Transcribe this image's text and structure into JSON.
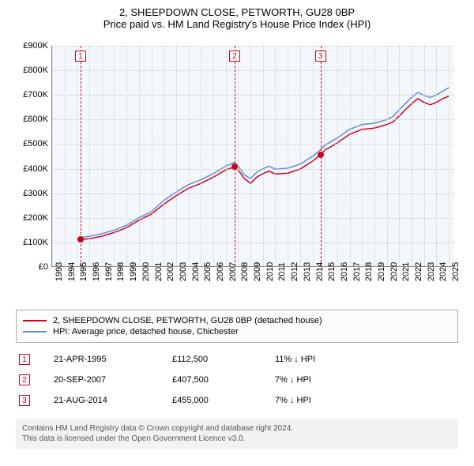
{
  "titles": {
    "line1": "2, SHEEPDOWN CLOSE, PETWORTH, GU28 0BP",
    "line2": "Price paid vs. HM Land Registry's House Price Index (HPI)"
  },
  "chart": {
    "type": "line",
    "background_color": "#f4f7fb",
    "grid_color": "#cccccc",
    "axis_color": "#888888",
    "x_years": [
      1993,
      1994,
      1995,
      1996,
      1997,
      1998,
      1999,
      2000,
      2001,
      2002,
      2003,
      2004,
      2005,
      2006,
      2007,
      2008,
      2009,
      2010,
      2011,
      2012,
      2013,
      2014,
      2015,
      2016,
      2017,
      2018,
      2019,
      2020,
      2021,
      2022,
      2023,
      2024,
      2025
    ],
    "xlim": [
      1993,
      2025.5
    ],
    "y_ticks": [
      0,
      100,
      200,
      300,
      400,
      500,
      600,
      700,
      800,
      900
    ],
    "y_tick_labels": [
      "£0",
      "£100K",
      "£200K",
      "£300K",
      "£400K",
      "£500K",
      "£600K",
      "£700K",
      "£800K",
      "£900K"
    ],
    "ylim": [
      0,
      900
    ],
    "label_fontsize": 11,
    "series": [
      {
        "name": "2, SHEEPDOWN CLOSE, PETWORTH, GU28 0BP (detached house)",
        "color": "#d00020",
        "line_width": 1.5,
        "data": [
          [
            1995.3,
            112
          ],
          [
            1996,
            115
          ],
          [
            1997,
            125
          ],
          [
            1998,
            140
          ],
          [
            1999,
            160
          ],
          [
            2000,
            190
          ],
          [
            2001,
            215
          ],
          [
            2002,
            255
          ],
          [
            2003,
            290
          ],
          [
            2004,
            320
          ],
          [
            2005,
            340
          ],
          [
            2006,
            365
          ],
          [
            2007,
            395
          ],
          [
            2007.7,
            407
          ],
          [
            2008,
            395
          ],
          [
            2008.5,
            360
          ],
          [
            2009,
            340
          ],
          [
            2009.5,
            365
          ],
          [
            2010,
            380
          ],
          [
            2010.5,
            390
          ],
          [
            2011,
            378
          ],
          [
            2012,
            382
          ],
          [
            2013,
            398
          ],
          [
            2014,
            430
          ],
          [
            2014.6,
            455
          ],
          [
            2015,
            475
          ],
          [
            2016,
            505
          ],
          [
            2017,
            540
          ],
          [
            2018,
            560
          ],
          [
            2019,
            565
          ],
          [
            2020,
            580
          ],
          [
            2020.5,
            590
          ],
          [
            2021,
            615
          ],
          [
            2021.5,
            640
          ],
          [
            2022,
            665
          ],
          [
            2022.5,
            685
          ],
          [
            2023,
            670
          ],
          [
            2023.5,
            660
          ],
          [
            2024,
            670
          ],
          [
            2024.5,
            685
          ],
          [
            2025,
            695
          ]
        ]
      },
      {
        "name": "HPI: Average price, detached house, Chichester",
        "color": "#5b8fd6",
        "line_width": 1.5,
        "data": [
          [
            1995.3,
            120
          ],
          [
            1996,
            125
          ],
          [
            1997,
            135
          ],
          [
            1998,
            150
          ],
          [
            1999,
            170
          ],
          [
            2000,
            200
          ],
          [
            2001,
            225
          ],
          [
            2002,
            270
          ],
          [
            2003,
            305
          ],
          [
            2004,
            335
          ],
          [
            2005,
            355
          ],
          [
            2006,
            380
          ],
          [
            2007,
            410
          ],
          [
            2007.7,
            425
          ],
          [
            2008,
            410
          ],
          [
            2008.5,
            375
          ],
          [
            2009,
            360
          ],
          [
            2009.5,
            385
          ],
          [
            2010,
            400
          ],
          [
            2010.5,
            410
          ],
          [
            2011,
            398
          ],
          [
            2012,
            402
          ],
          [
            2013,
            418
          ],
          [
            2014,
            450
          ],
          [
            2014.6,
            475
          ],
          [
            2015,
            495
          ],
          [
            2016,
            525
          ],
          [
            2017,
            560
          ],
          [
            2018,
            580
          ],
          [
            2019,
            585
          ],
          [
            2020,
            600
          ],
          [
            2020.5,
            612
          ],
          [
            2021,
            640
          ],
          [
            2021.5,
            665
          ],
          [
            2022,
            690
          ],
          [
            2022.5,
            710
          ],
          [
            2023,
            698
          ],
          [
            2023.5,
            690
          ],
          [
            2024,
            700
          ],
          [
            2024.5,
            715
          ],
          [
            2025,
            730
          ]
        ]
      }
    ],
    "markers": [
      {
        "n": "1",
        "year": 1995.3,
        "price_k": 112,
        "line_color": "#d00020",
        "box_border": "#d00020"
      },
      {
        "n": "2",
        "year": 2007.72,
        "price_k": 407,
        "line_color": "#d00020",
        "box_border": "#d00020"
      },
      {
        "n": "3",
        "year": 2014.64,
        "price_k": 455,
        "line_color": "#d00020",
        "box_border": "#d00020"
      }
    ]
  },
  "legend": {
    "items": [
      {
        "color": "#d00020",
        "label": "2, SHEEPDOWN CLOSE, PETWORTH, GU28 0BP (detached house)"
      },
      {
        "color": "#5b8fd6",
        "label": "HPI: Average price, detached house, Chichester"
      }
    ]
  },
  "events": [
    {
      "n": "1",
      "date": "21-APR-1995",
      "price": "£112,500",
      "diff": "11% ↓ HPI"
    },
    {
      "n": "2",
      "date": "20-SEP-2007",
      "price": "£407,500",
      "diff": "7% ↓ HPI"
    },
    {
      "n": "3",
      "date": "21-AUG-2014",
      "price": "£455,000",
      "diff": "7% ↓ HPI"
    }
  ],
  "footer": {
    "line1": "Contains HM Land Registry data © Crown copyright and database right 2024.",
    "line2": "This data is licensed under the Open Government Licence v3.0."
  }
}
